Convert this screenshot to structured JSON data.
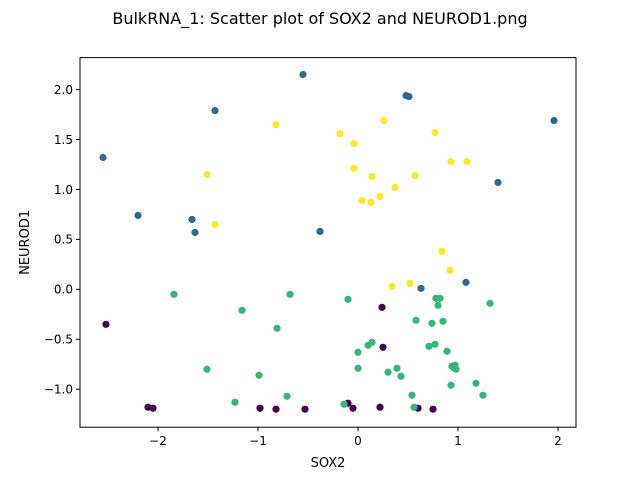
{
  "chart_data": {
    "type": "scatter",
    "title": "BulkRNA_1: Scatter plot of SOX2 and NEUROD1.png",
    "xlabel": "SOX2",
    "ylabel": "NEUROD1",
    "xlim": [
      -2.78,
      2.18
    ],
    "ylim": [
      -1.38,
      2.32
    ],
    "xticks": [
      -2,
      -1,
      0,
      1,
      2
    ],
    "xtick_labels": [
      "−2",
      "−1",
      "0",
      "1",
      "2"
    ],
    "yticks": [
      -1.0,
      -0.5,
      0.0,
      0.5,
      1.0,
      1.5,
      2.0
    ],
    "ytick_labels": [
      "−1.0",
      "−0.5",
      "0.0",
      "0.5",
      "1.0",
      "1.5",
      "2.0"
    ],
    "grid": false,
    "legend": "none",
    "series": [
      {
        "color": "#440154",
        "points": [
          [
            -2.52,
            -0.35
          ],
          [
            -2.1,
            -1.18
          ],
          [
            -2.05,
            -1.19
          ],
          [
            -0.98,
            -1.19
          ],
          [
            -0.82,
            -1.2
          ],
          [
            -0.53,
            -1.2
          ],
          [
            -0.1,
            -1.14
          ],
          [
            -0.05,
            -1.19
          ],
          [
            0.22,
            -1.18
          ],
          [
            0.24,
            -0.18
          ],
          [
            0.25,
            -0.58
          ],
          [
            0.6,
            -1.19
          ],
          [
            0.75,
            -1.2
          ]
        ]
      },
      {
        "color": "#31688e",
        "points": [
          [
            -2.55,
            1.32
          ],
          [
            -2.2,
            0.74
          ],
          [
            -1.66,
            0.7
          ],
          [
            -1.63,
            0.57
          ],
          [
            -1.43,
            1.79
          ],
          [
            -0.55,
            2.15
          ],
          [
            -0.38,
            0.58
          ],
          [
            0.48,
            1.94
          ],
          [
            0.51,
            1.93
          ],
          [
            0.63,
            0.01
          ],
          [
            1.08,
            0.07
          ],
          [
            1.4,
            1.07
          ],
          [
            1.96,
            1.69
          ]
        ]
      },
      {
        "color": "#35b779",
        "points": [
          [
            -1.84,
            -0.05
          ],
          [
            -1.51,
            -0.8
          ],
          [
            -1.23,
            -1.13
          ],
          [
            -1.16,
            -0.21
          ],
          [
            -0.99,
            -0.86
          ],
          [
            -0.81,
            -0.39
          ],
          [
            -0.71,
            -1.07
          ],
          [
            -0.68,
            -0.05
          ],
          [
            -0.14,
            -1.15
          ],
          [
            -0.1,
            -0.1
          ],
          [
            0.0,
            -0.63
          ],
          [
            0.0,
            -0.79
          ],
          [
            0.1,
            -0.56
          ],
          [
            0.14,
            -0.53
          ],
          [
            0.3,
            -0.83
          ],
          [
            0.39,
            -0.79
          ],
          [
            0.43,
            -0.87
          ],
          [
            0.54,
            -1.06
          ],
          [
            0.56,
            -1.18
          ],
          [
            0.58,
            -0.31
          ],
          [
            0.71,
            -0.57
          ],
          [
            0.74,
            -0.34
          ],
          [
            0.77,
            -0.55
          ],
          [
            0.78,
            -0.09
          ],
          [
            0.8,
            -0.16
          ],
          [
            0.82,
            -0.09
          ],
          [
            0.85,
            -0.32
          ],
          [
            0.89,
            -0.62
          ],
          [
            0.93,
            -0.96
          ],
          [
            0.94,
            -0.77
          ],
          [
            0.96,
            -0.79
          ],
          [
            0.97,
            -0.76
          ],
          [
            0.98,
            -0.8
          ],
          [
            1.18,
            -0.94
          ],
          [
            1.25,
            -1.06
          ],
          [
            1.32,
            -0.14
          ]
        ]
      },
      {
        "color": "#fde725",
        "points": [
          [
            -1.51,
            1.15
          ],
          [
            -1.43,
            0.65
          ],
          [
            -0.82,
            1.65
          ],
          [
            -0.18,
            1.56
          ],
          [
            -0.04,
            1.46
          ],
          [
            -0.04,
            1.21
          ],
          [
            0.04,
            0.89
          ],
          [
            0.13,
            0.87
          ],
          [
            0.14,
            1.13
          ],
          [
            0.22,
            0.93
          ],
          [
            0.26,
            1.69
          ],
          [
            0.34,
            0.03
          ],
          [
            0.37,
            1.02
          ],
          [
            0.52,
            0.06
          ],
          [
            0.57,
            1.14
          ],
          [
            0.77,
            1.57
          ],
          [
            0.84,
            0.38
          ],
          [
            0.92,
            0.19
          ],
          [
            0.93,
            1.28
          ],
          [
            1.09,
            1.28
          ]
        ]
      }
    ]
  }
}
